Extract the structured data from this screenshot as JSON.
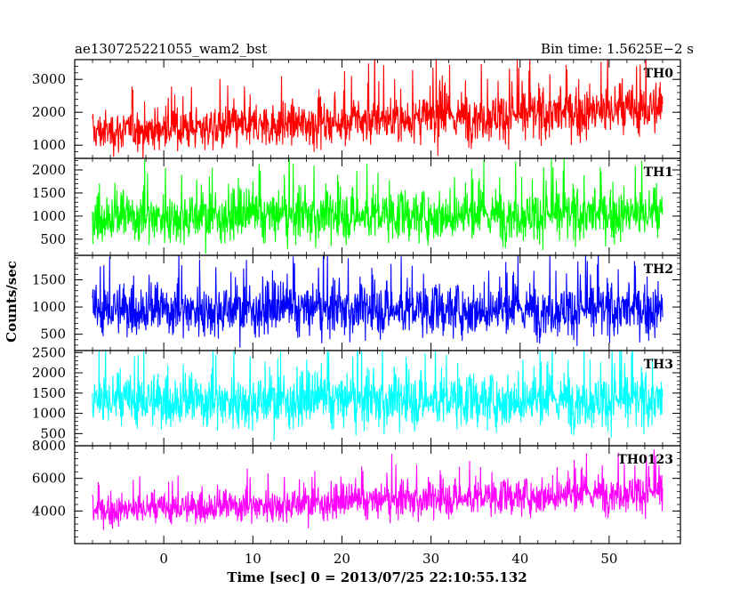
{
  "header": {
    "left": "ae130725221055_wam2_bst",
    "right": "Bin time: 1.5625E−2 s"
  },
  "chart_data": {
    "type": "line",
    "title": "ae130725221055_wam2_bst",
    "subtitle": "Bin time: 1.5625E−2 s",
    "xlabel": "Time [sec] 0 = 2013/07/25 22:10:55.132",
    "ylabel": "Counts/sec",
    "xlim": [
      -10,
      58
    ],
    "x_data_range": [
      -8,
      56
    ],
    "x_ticks": [
      0,
      10,
      20,
      30,
      40,
      50
    ],
    "x_tick_labels": [
      "0",
      "10",
      "20",
      "30",
      "40",
      "50"
    ],
    "grid": false,
    "legend": "none",
    "panels": [
      {
        "label": "TH0",
        "color": "#ff0000",
        "ylim": [
          600,
          3600
        ],
        "y_ticks": [
          1000,
          2000,
          3000
        ],
        "y_tick_labels": [
          "1000",
          "2000",
          "3000"
        ],
        "trend": {
          "x": [
            -8,
            56
          ],
          "mean": [
            1400,
            2100
          ],
          "spread": [
            430,
            560
          ]
        }
      },
      {
        "label": "TH1",
        "color": "#00ff00",
        "ylim": [
          150,
          2250
        ],
        "y_ticks": [
          500,
          1000,
          1500,
          2000
        ],
        "y_tick_labels": [
          "500",
          "1000",
          "1500",
          "2000"
        ],
        "trend": {
          "x": [
            -8,
            56
          ],
          "mean": [
            980,
            1040
          ],
          "spread": [
            380,
            380
          ]
        }
      },
      {
        "label": "TH2",
        "color": "#0000ff",
        "ylim": [
          200,
          1950
        ],
        "y_ticks": [
          500,
          1000,
          1500
        ],
        "y_tick_labels": [
          "500",
          "1000",
          "1500"
        ],
        "trend": {
          "x": [
            -8,
            56
          ],
          "mean": [
            950,
            950
          ],
          "spread": [
            330,
            330
          ]
        }
      },
      {
        "label": "TH3",
        "color": "#00ffff",
        "ylim": [
          200,
          2550
        ],
        "y_ticks": [
          500,
          1000,
          1500,
          2000,
          2500
        ],
        "y_tick_labels": [
          "500",
          "1000",
          "1500",
          "2000",
          "2500"
        ],
        "trend": {
          "x": [
            -8,
            56
          ],
          "mean": [
            1300,
            1330
          ],
          "spread": [
            460,
            460
          ]
        }
      },
      {
        "label": "TH0123",
        "color": "#ff00ff",
        "ylim": [
          2000,
          8000
        ],
        "y_ticks": [
          4000,
          6000,
          8000
        ],
        "y_tick_labels": [
          "4000",
          "6000",
          "8000"
        ],
        "trend": {
          "x": [
            -8,
            56
          ],
          "mean": [
            4000,
            5200
          ],
          "spread": [
            650,
            820
          ]
        }
      }
    ]
  }
}
